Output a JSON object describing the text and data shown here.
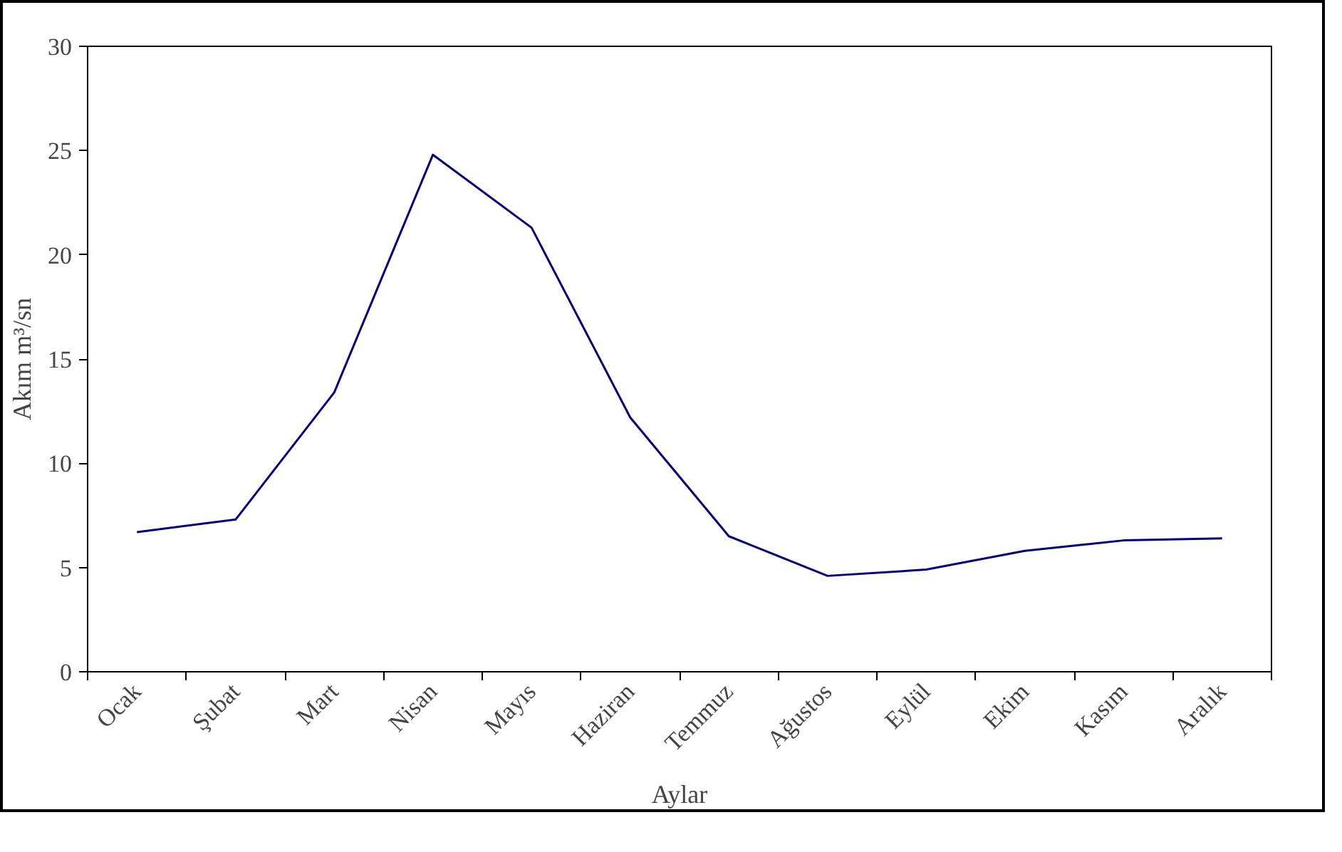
{
  "chart_data": {
    "type": "line",
    "xlabel": "Aylar",
    "ylabel": "Akım m³/sn",
    "categories": [
      "Ocak",
      "Şubat",
      "Mart",
      "Nisan",
      "Mayıs",
      "Haziran",
      "Temmuz",
      "Ağustos",
      "Eylül",
      "Ekim",
      "Kasım",
      "Aralık"
    ],
    "series": [
      {
        "color": "#000080",
        "values": [
          6.7,
          7.3,
          13.4,
          24.8,
          21.3,
          12.2,
          6.5,
          4.6,
          4.9,
          5.8,
          6.3,
          6.4
        ]
      }
    ],
    "ylim": [
      0,
      30
    ],
    "yticks": [
      0,
      5,
      10,
      15,
      20,
      25,
      30
    ],
    "grid": false,
    "marker": "none",
    "line_style": "solid"
  }
}
